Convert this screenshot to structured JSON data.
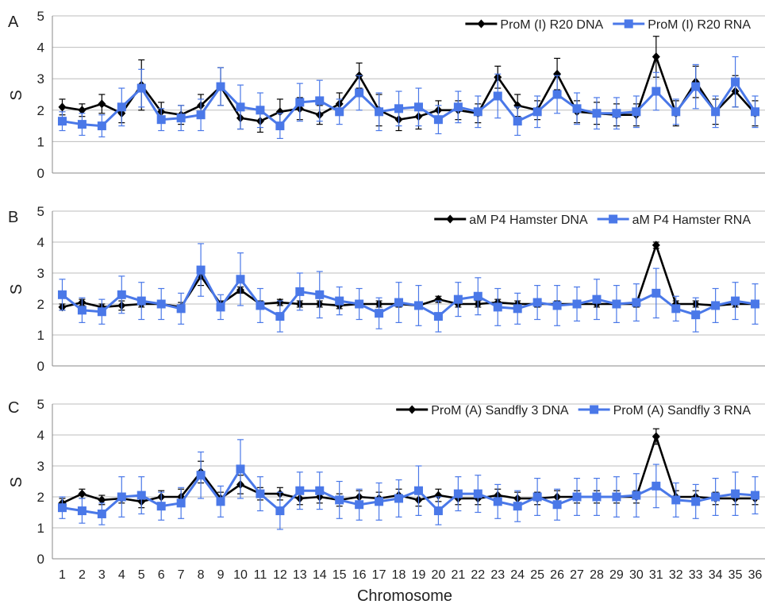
{
  "colors": {
    "dna": "#000000",
    "rna": "#4a78e8",
    "grid": "#bdbdbd"
  },
  "x_label": "Chromosome",
  "x_ticks": [
    "1",
    "2",
    "3",
    "4",
    "5",
    "6",
    "7",
    "8",
    "9",
    "10",
    "11",
    "12",
    "13",
    "14",
    "15",
    "16",
    "17",
    "18",
    "19",
    "20",
    "21",
    "22",
    "23",
    "24",
    "25",
    "26",
    "27",
    "28",
    "29",
    "30",
    "31",
    "32",
    "33",
    "34",
    "35",
    "36"
  ],
  "chart_data": [
    {
      "type": "line",
      "panel": "A",
      "ylabel": "S",
      "ylim": [
        0,
        5
      ],
      "yticks": [
        "0",
        "1",
        "2",
        "3",
        "4",
        "5"
      ],
      "grid": true,
      "legend_position": "top-right",
      "x": [
        1,
        2,
        3,
        4,
        5,
        6,
        7,
        8,
        9,
        10,
        11,
        12,
        13,
        14,
        15,
        16,
        17,
        18,
        19,
        20,
        21,
        22,
        23,
        24,
        25,
        26,
        27,
        28,
        29,
        30,
        31,
        32,
        33,
        34,
        35,
        36
      ],
      "series": [
        {
          "name": "ProM (I) R20 DNA",
          "marker": "diamond",
          "values": [
            2.1,
            2.0,
            2.2,
            1.9,
            2.8,
            1.95,
            1.85,
            2.15,
            2.75,
            1.75,
            1.65,
            1.95,
            2.05,
            1.85,
            2.2,
            3.1,
            2.0,
            1.7,
            1.8,
            2.0,
            2.0,
            1.9,
            3.05,
            2.15,
            2.0,
            3.15,
            1.95,
            1.9,
            1.85,
            1.85,
            3.7,
            1.9,
            2.9,
            1.95,
            2.6,
            1.9
          ],
          "errors": [
            0.25,
            0.2,
            0.3,
            0.3,
            0.8,
            0.3,
            0.3,
            0.35,
            0.6,
            0.35,
            0.35,
            0.4,
            0.35,
            0.3,
            0.35,
            0.4,
            0.5,
            0.35,
            0.4,
            0.3,
            0.3,
            0.3,
            0.35,
            0.35,
            0.3,
            0.5,
            0.35,
            0.35,
            0.35,
            0.35,
            0.65,
            0.4,
            0.5,
            0.4,
            0.5,
            0.4
          ]
        },
        {
          "name": "ProM (I) R20 RNA",
          "marker": "square",
          "values": [
            1.65,
            1.55,
            1.5,
            2.1,
            2.7,
            1.7,
            1.75,
            1.85,
            2.75,
            2.1,
            2.0,
            1.5,
            2.25,
            2.3,
            1.95,
            2.55,
            1.95,
            2.05,
            2.1,
            1.7,
            2.1,
            1.95,
            2.45,
            1.65,
            1.95,
            2.5,
            2.05,
            1.9,
            1.9,
            1.95,
            2.6,
            1.95,
            2.75,
            1.95,
            2.9,
            1.95
          ],
          "errors": [
            0.3,
            0.35,
            0.35,
            0.6,
            0.6,
            0.35,
            0.4,
            0.5,
            0.6,
            0.7,
            0.55,
            0.4,
            0.6,
            0.65,
            0.4,
            0.55,
            0.6,
            0.55,
            0.6,
            0.45,
            0.5,
            0.5,
            0.7,
            0.45,
            0.5,
            0.6,
            0.5,
            0.5,
            0.5,
            0.5,
            0.6,
            0.4,
            0.7,
            0.5,
            0.8,
            0.5
          ]
        }
      ]
    },
    {
      "type": "line",
      "panel": "B",
      "ylabel": "S",
      "ylim": [
        0,
        5
      ],
      "yticks": [
        "0",
        "1",
        "2",
        "3",
        "4",
        "5"
      ],
      "grid": true,
      "legend_position": "top-right",
      "x": [
        1,
        2,
        3,
        4,
        5,
        6,
        7,
        8,
        9,
        10,
        11,
        12,
        13,
        14,
        15,
        16,
        17,
        18,
        19,
        20,
        21,
        22,
        23,
        24,
        25,
        26,
        27,
        28,
        29,
        30,
        31,
        32,
        33,
        34,
        35,
        36
      ],
      "series": [
        {
          "name": "aM P4 Hamster DNA",
          "marker": "diamond",
          "values": [
            1.9,
            2.05,
            1.9,
            1.95,
            2.0,
            2.0,
            1.9,
            2.9,
            2.0,
            2.45,
            2.0,
            2.05,
            2.0,
            2.0,
            1.95,
            2.0,
            2.0,
            2.0,
            1.95,
            2.15,
            2.0,
            2.0,
            2.05,
            2.0,
            2.0,
            2.0,
            2.0,
            2.0,
            2.0,
            2.0,
            3.9,
            2.0,
            2.0,
            1.95,
            2.0,
            2.0
          ],
          "errors": [
            0.1,
            0.1,
            0.1,
            0.15,
            0.1,
            0.1,
            0.15,
            0.3,
            0.1,
            0.1,
            0.1,
            0.1,
            0.1,
            0.1,
            0.1,
            0.1,
            0.1,
            0.1,
            0.1,
            0.1,
            0.1,
            0.1,
            0.1,
            0.1,
            0.1,
            0.1,
            0.1,
            0.1,
            0.1,
            0.1,
            0.1,
            0.1,
            0.1,
            0.1,
            0.1,
            0.1
          ]
        },
        {
          "name": "aM P4 Hamster RNA",
          "marker": "square",
          "values": [
            2.3,
            1.8,
            1.75,
            2.3,
            2.1,
            2.0,
            1.85,
            3.1,
            1.9,
            2.8,
            1.95,
            1.6,
            2.4,
            2.3,
            2.1,
            2.0,
            1.7,
            2.05,
            1.95,
            1.6,
            2.15,
            2.25,
            1.9,
            1.85,
            2.05,
            1.95,
            2.0,
            2.15,
            2.0,
            2.05,
            2.35,
            1.85,
            1.65,
            1.95,
            2.1,
            2.0
          ],
          "errors": [
            0.5,
            0.4,
            0.4,
            0.6,
            0.6,
            0.5,
            0.5,
            0.85,
            0.4,
            0.85,
            0.55,
            0.5,
            0.6,
            0.75,
            0.45,
            0.5,
            0.5,
            0.65,
            0.65,
            0.5,
            0.55,
            0.6,
            0.6,
            0.5,
            0.55,
            0.65,
            0.55,
            0.65,
            0.6,
            0.6,
            0.8,
            0.4,
            0.55,
            0.55,
            0.6,
            0.65
          ]
        }
      ]
    },
    {
      "type": "line",
      "panel": "C",
      "ylabel": "S",
      "ylim": [
        0,
        5
      ],
      "yticks": [
        "0",
        "1",
        "2",
        "3",
        "4",
        "5"
      ],
      "grid": true,
      "legend_position": "top-right",
      "x": [
        1,
        2,
        3,
        4,
        5,
        6,
        7,
        8,
        9,
        10,
        11,
        12,
        13,
        14,
        15,
        16,
        17,
        18,
        19,
        20,
        21,
        22,
        23,
        24,
        25,
        26,
        27,
        28,
        29,
        30,
        31,
        32,
        33,
        34,
        35,
        36
      ],
      "series": [
        {
          "name": "ProM (A) Sandfly 3 DNA",
          "marker": "diamond",
          "values": [
            1.8,
            2.1,
            1.9,
            1.95,
            1.85,
            2.0,
            2.0,
            2.8,
            1.95,
            2.4,
            2.1,
            2.1,
            1.95,
            2.0,
            1.9,
            2.0,
            1.95,
            2.05,
            1.9,
            2.05,
            1.95,
            1.95,
            2.05,
            1.95,
            1.95,
            2.0,
            2.0,
            2.0,
            2.0,
            2.0,
            3.95,
            2.0,
            2.0,
            1.95,
            1.95,
            1.95
          ],
          "errors": [
            0.15,
            0.15,
            0.15,
            0.15,
            0.2,
            0.2,
            0.25,
            0.35,
            0.2,
            0.3,
            0.2,
            0.2,
            0.2,
            0.2,
            0.2,
            0.2,
            0.2,
            0.2,
            0.2,
            0.2,
            0.2,
            0.2,
            0.2,
            0.2,
            0.2,
            0.2,
            0.2,
            0.2,
            0.2,
            0.2,
            0.25,
            0.2,
            0.2,
            0.2,
            0.2,
            0.2
          ]
        },
        {
          "name": "ProM (A) Sandfly 3 RNA",
          "marker": "square",
          "values": [
            1.65,
            1.55,
            1.45,
            2.0,
            2.05,
            1.7,
            1.8,
            2.7,
            1.85,
            2.9,
            2.1,
            1.55,
            2.2,
            2.2,
            1.9,
            1.75,
            1.85,
            1.95,
            2.2,
            1.55,
            2.1,
            2.1,
            1.85,
            1.7,
            2.0,
            1.75,
            2.0,
            2.0,
            2.0,
            2.05,
            2.35,
            1.9,
            1.85,
            2.0,
            2.1,
            2.05
          ],
          "errors": [
            0.35,
            0.4,
            0.35,
            0.65,
            0.6,
            0.45,
            0.5,
            0.75,
            0.5,
            0.95,
            0.55,
            0.6,
            0.6,
            0.6,
            0.6,
            0.5,
            0.6,
            0.6,
            0.8,
            0.45,
            0.55,
            0.6,
            0.55,
            0.5,
            0.6,
            0.5,
            0.6,
            0.6,
            0.65,
            0.7,
            0.7,
            0.55,
            0.55,
            0.6,
            0.7,
            0.6
          ]
        }
      ]
    }
  ]
}
